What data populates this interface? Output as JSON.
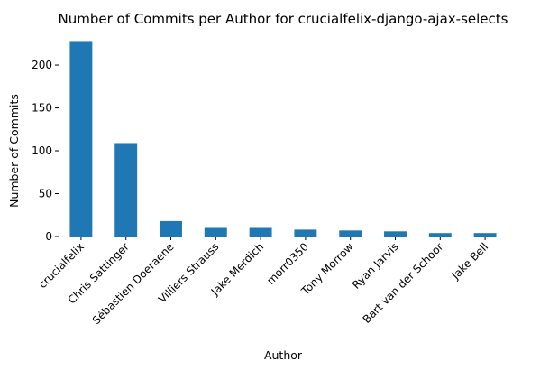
{
  "chart_data": {
    "type": "bar",
    "title": "Number of Commits per Author for crucialfelix-django-ajax-selects",
    "xlabel": "Author",
    "ylabel": "Number of Commits",
    "categories": [
      "crucialfelix",
      "Chris Sattinger",
      "Sébastien Doeraene",
      "Villiers Strauss",
      "Jake Merdich",
      "morr0350",
      "Tony Morrow",
      "Ryan Jarvis",
      "Bart van der Schoor",
      "Jake Bell"
    ],
    "values": [
      228,
      109,
      18,
      10,
      10,
      8,
      7,
      6,
      4,
      4
    ],
    "ylim": [
      0,
      239
    ],
    "yticks": [
      0,
      50,
      100,
      150,
      200
    ],
    "grid": false,
    "bar_color": "#1f77b4"
  }
}
